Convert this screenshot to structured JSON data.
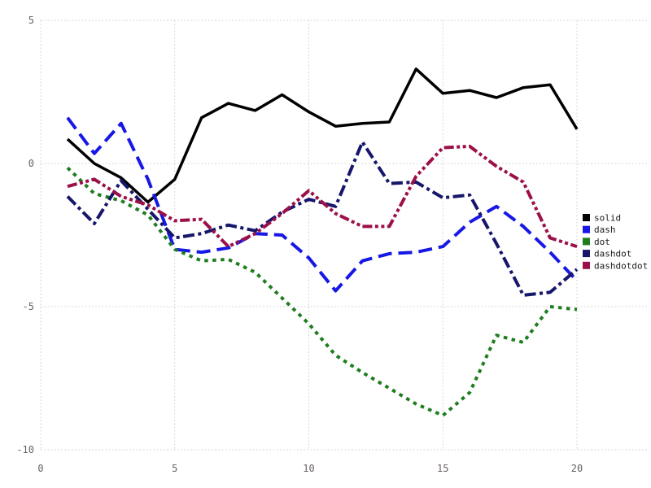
{
  "chart_data": {
    "type": "line",
    "title": "",
    "xlabel": "",
    "ylabel": "",
    "xlim": [
      0,
      20.7
    ],
    "ylim": [
      -10.6,
      5.35
    ],
    "x_ticks": [
      "0",
      "5",
      "10",
      "15",
      "20"
    ],
    "x_tick_values": [
      0,
      5,
      10,
      15,
      20
    ],
    "y_ticks": [
      "5",
      "0",
      "-5",
      "-10"
    ],
    "y_tick_values": [
      5,
      0,
      -5,
      -10
    ],
    "grid": true,
    "grid_style": "dotted",
    "legend_position": "right",
    "x": [
      1,
      2,
      3,
      4,
      5,
      6,
      7,
      8,
      9,
      10,
      11,
      12,
      13,
      14,
      15,
      16,
      17,
      18,
      19,
      20
    ],
    "series": [
      {
        "name": "solid",
        "line_style": "solid",
        "color": "#000000",
        "values": [
          0.85,
          0.0,
          -0.5,
          -1.35,
          -0.55,
          1.6,
          2.1,
          1.85,
          2.4,
          1.8,
          1.3,
          1.4,
          1.45,
          3.3,
          2.45,
          2.55,
          2.3,
          2.65,
          2.75,
          1.2
        ]
      },
      {
        "name": "dash",
        "line_style": "dash",
        "color": "#1717e6",
        "values": [
          1.6,
          0.35,
          1.4,
          -0.55,
          -3.0,
          -3.1,
          -2.95,
          -2.45,
          -2.5,
          -3.3,
          -4.45,
          -3.4,
          -3.15,
          -3.1,
          -2.9,
          -2.05,
          -1.5,
          -2.2,
          -3.1,
          -4.1
        ]
      },
      {
        "name": "dot",
        "line_style": "dot",
        "color": "#1e7d1e",
        "values": [
          -0.15,
          -1.05,
          -1.3,
          -1.8,
          -3.0,
          -3.4,
          -3.35,
          -3.8,
          -4.7,
          -5.6,
          -6.7,
          -7.3,
          -7.85,
          -8.4,
          -8.8,
          -8.0,
          -6.0,
          -6.25,
          -5.0,
          -5.1
        ]
      },
      {
        "name": "dashdot",
        "line_style": "dashdot",
        "color": "#16166b",
        "values": [
          -1.15,
          -2.1,
          -0.6,
          -1.6,
          -2.6,
          -2.45,
          -2.15,
          -2.35,
          -1.7,
          -1.25,
          -1.5,
          0.75,
          -0.7,
          -0.65,
          -1.2,
          -1.1,
          -2.8,
          -4.6,
          -4.5,
          -3.7
        ]
      },
      {
        "name": "dashdotdot",
        "line_style": "dashdotdot",
        "color": "#9b1048",
        "values": [
          -0.8,
          -0.55,
          -1.15,
          -1.45,
          -2.0,
          -1.95,
          -2.9,
          -2.45,
          -1.75,
          -0.95,
          -1.75,
          -2.2,
          -2.2,
          -0.45,
          0.55,
          0.6,
          -0.1,
          -0.65,
          -2.6,
          -2.9
        ]
      }
    ]
  },
  "legend": {
    "items": [
      {
        "label": "solid",
        "color": "#000000"
      },
      {
        "label": "dash",
        "color": "#1717e6"
      },
      {
        "label": "dot",
        "color": "#1e7d1e"
      },
      {
        "label": "dashdot",
        "color": "#16166b"
      },
      {
        "label": "dashdotdot",
        "color": "#9b1048"
      }
    ]
  },
  "axes": {
    "tick_label_color": "#6a6161",
    "grid_color": "#cfcfcf"
  }
}
